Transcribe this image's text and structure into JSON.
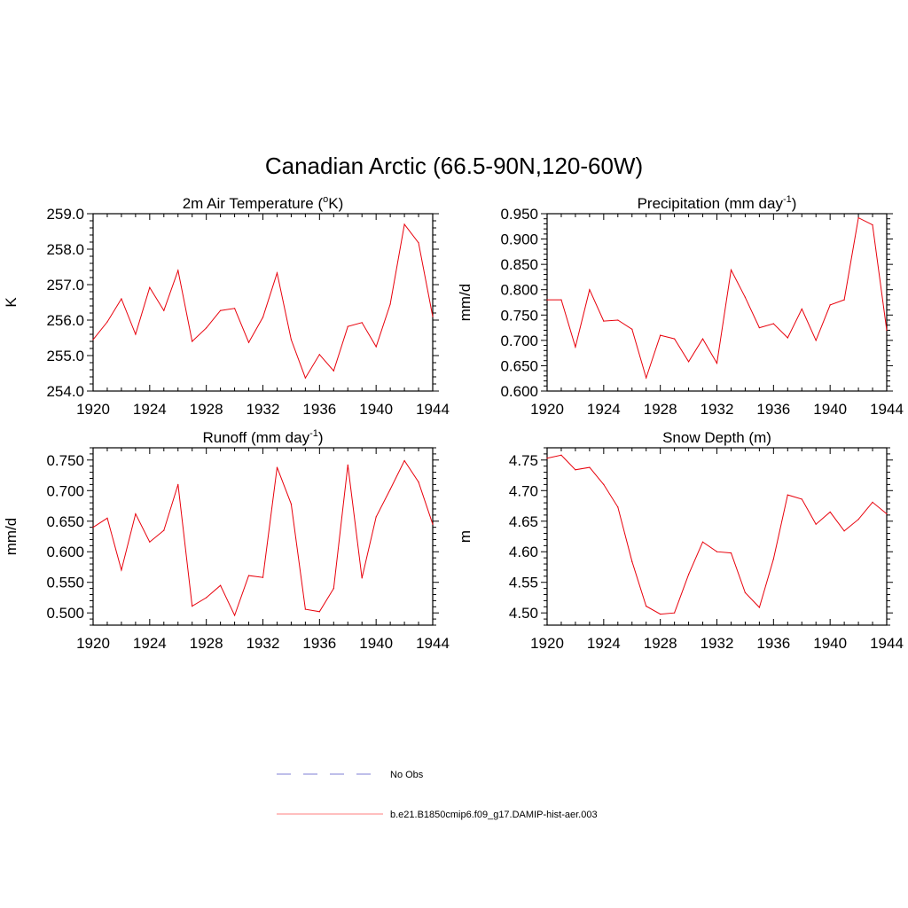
{
  "title": "Canadian Arctic (66.5-90N,120-60W)",
  "colors": {
    "model": "#e8000b",
    "obs": "#9999dd"
  },
  "legend": {
    "obs_label": "No Obs",
    "model_label": "b.e21.B1850cmip6.f09_g17.DAMIP-hist-aer.003"
  },
  "chart_data": [
    {
      "type": "line",
      "title_main": "2m Air Temperature (",
      "title_sup": "o",
      "title_tail": "K)",
      "ylabel": "K",
      "xlim": [
        1920,
        1944
      ],
      "ylim": [
        254.0,
        259.0
      ],
      "x_ticks": [
        "1920",
        "1924",
        "1928",
        "1932",
        "1936",
        "1940",
        "1944"
      ],
      "y_ticks": [
        "254.0",
        "255.0",
        "256.0",
        "257.0",
        "258.0",
        "259.0"
      ],
      "y_tick_values": [
        254.0,
        255.0,
        256.0,
        257.0,
        258.0,
        259.0
      ],
      "series": [
        {
          "x": [
            1920,
            1921,
            1922,
            1923,
            1924,
            1925,
            1926,
            1927,
            1928,
            1929,
            1930,
            1931,
            1932,
            1933,
            1934,
            1935,
            1936,
            1937,
            1938,
            1939,
            1940,
            1941,
            1942,
            1943,
            1944
          ],
          "values": [
            255.45,
            255.95,
            256.6,
            255.6,
            256.92,
            256.27,
            257.4,
            255.4,
            255.78,
            256.27,
            256.33,
            255.37,
            256.08,
            257.33,
            255.45,
            254.37,
            255.03,
            254.57,
            255.82,
            255.93,
            255.25,
            256.45,
            258.7,
            258.18,
            256.1
          ]
        }
      ]
    },
    {
      "type": "line",
      "title_main": "Precipitation (mm day",
      "title_sup": "-1",
      "title_tail": ")",
      "ylabel": "mm/d",
      "xlim": [
        1920,
        1944
      ],
      "ylim": [
        0.6,
        0.95
      ],
      "x_ticks": [
        "1920",
        "1924",
        "1928",
        "1932",
        "1936",
        "1940",
        "1944"
      ],
      "y_ticks": [
        "0.600",
        "0.650",
        "0.700",
        "0.750",
        "0.800",
        "0.850",
        "0.900",
        "0.950"
      ],
      "y_tick_values": [
        0.6,
        0.65,
        0.7,
        0.75,
        0.8,
        0.85,
        0.9,
        0.95
      ],
      "series": [
        {
          "x": [
            1920,
            1921,
            1922,
            1923,
            1924,
            1925,
            1926,
            1927,
            1928,
            1929,
            1930,
            1931,
            1932,
            1933,
            1934,
            1935,
            1936,
            1937,
            1938,
            1939,
            1940,
            1941,
            1942,
            1943,
            1944
          ],
          "values": [
            0.78,
            0.78,
            0.687,
            0.8,
            0.738,
            0.74,
            0.722,
            0.626,
            0.71,
            0.703,
            0.658,
            0.703,
            0.655,
            0.839,
            0.785,
            0.725,
            0.733,
            0.705,
            0.762,
            0.7,
            0.77,
            0.78,
            0.942,
            0.928,
            0.72
          ]
        }
      ]
    },
    {
      "type": "line",
      "title_main": "Runoff (mm day",
      "title_sup": "-1",
      "title_tail": ")",
      "ylabel": "mm/d",
      "xlim": [
        1920,
        1944
      ],
      "ylim": [
        0.48,
        0.77
      ],
      "x_ticks": [
        "1920",
        "1924",
        "1928",
        "1932",
        "1936",
        "1940",
        "1944"
      ],
      "y_ticks": [
        "0.500",
        "0.550",
        "0.600",
        "0.650",
        "0.700",
        "0.750"
      ],
      "y_tick_values": [
        0.5,
        0.55,
        0.6,
        0.65,
        0.7,
        0.75
      ],
      "series": [
        {
          "x": [
            1920,
            1921,
            1922,
            1923,
            1924,
            1925,
            1926,
            1927,
            1928,
            1929,
            1930,
            1931,
            1932,
            1933,
            1934,
            1935,
            1936,
            1937,
            1938,
            1939,
            1940,
            1941,
            1942,
            1943,
            1944
          ],
          "values": [
            0.64,
            0.655,
            0.57,
            0.662,
            0.616,
            0.635,
            0.71,
            0.511,
            0.525,
            0.545,
            0.496,
            0.561,
            0.558,
            0.738,
            0.678,
            0.506,
            0.502,
            0.54,
            0.742,
            0.557,
            0.657,
            0.702,
            0.749,
            0.714,
            0.645
          ]
        }
      ]
    },
    {
      "type": "line",
      "title_main": "Snow Depth (m)",
      "title_sup": "",
      "title_tail": "",
      "ylabel": "m",
      "xlim": [
        1920,
        1944
      ],
      "ylim": [
        4.48,
        4.77
      ],
      "x_ticks": [
        "1920",
        "1924",
        "1928",
        "1932",
        "1936",
        "1940",
        "1944"
      ],
      "y_ticks": [
        "4.50",
        "4.55",
        "4.60",
        "4.65",
        "4.70",
        "4.75"
      ],
      "y_tick_values": [
        4.5,
        4.55,
        4.6,
        4.65,
        4.7,
        4.75
      ],
      "series": [
        {
          "x": [
            1920,
            1921,
            1922,
            1923,
            1924,
            1925,
            1926,
            1927,
            1928,
            1929,
            1930,
            1931,
            1932,
            1933,
            1934,
            1935,
            1936,
            1937,
            1938,
            1939,
            1940,
            1941,
            1942,
            1943,
            1944
          ],
          "values": [
            4.753,
            4.758,
            4.734,
            4.738,
            4.71,
            4.673,
            4.584,
            4.511,
            4.498,
            4.5,
            4.563,
            4.616,
            4.6,
            4.598,
            4.533,
            4.509,
            4.588,
            4.693,
            4.686,
            4.645,
            4.665,
            4.634,
            4.653,
            4.681,
            4.662
          ]
        }
      ]
    }
  ]
}
